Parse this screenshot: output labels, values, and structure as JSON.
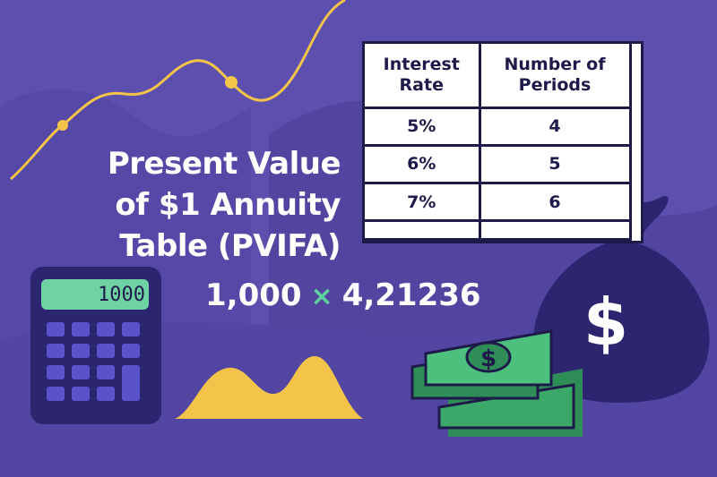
{
  "title": {
    "line1": "Present Value",
    "line2": "of $1 Annuity",
    "line3": "Table (PVIFA)"
  },
  "formula": {
    "left": "1,000",
    "operator": "×",
    "right": "4,21236"
  },
  "table": {
    "headers": [
      "Interest\nRate",
      "Number of\nPeriods"
    ],
    "header_col1_line1": "Interest",
    "header_col1_line2": "Rate",
    "header_col2_line1": "Number of",
    "header_col2_line2": "Periods",
    "rows": [
      {
        "rate": "5%",
        "periods": "4"
      },
      {
        "rate": "6%",
        "periods": "5"
      },
      {
        "rate": "7%",
        "periods": "6"
      }
    ]
  },
  "calculator": {
    "display": "1000"
  },
  "money_bag": {
    "symbol": "$"
  },
  "cash_stack": {
    "symbol": "$"
  },
  "colors": {
    "background": "#5d4fae",
    "hills": "#5245a0",
    "accent_yellow": "#f2c44a",
    "navy": "#2c2670",
    "money_green": "#3ba86a"
  }
}
